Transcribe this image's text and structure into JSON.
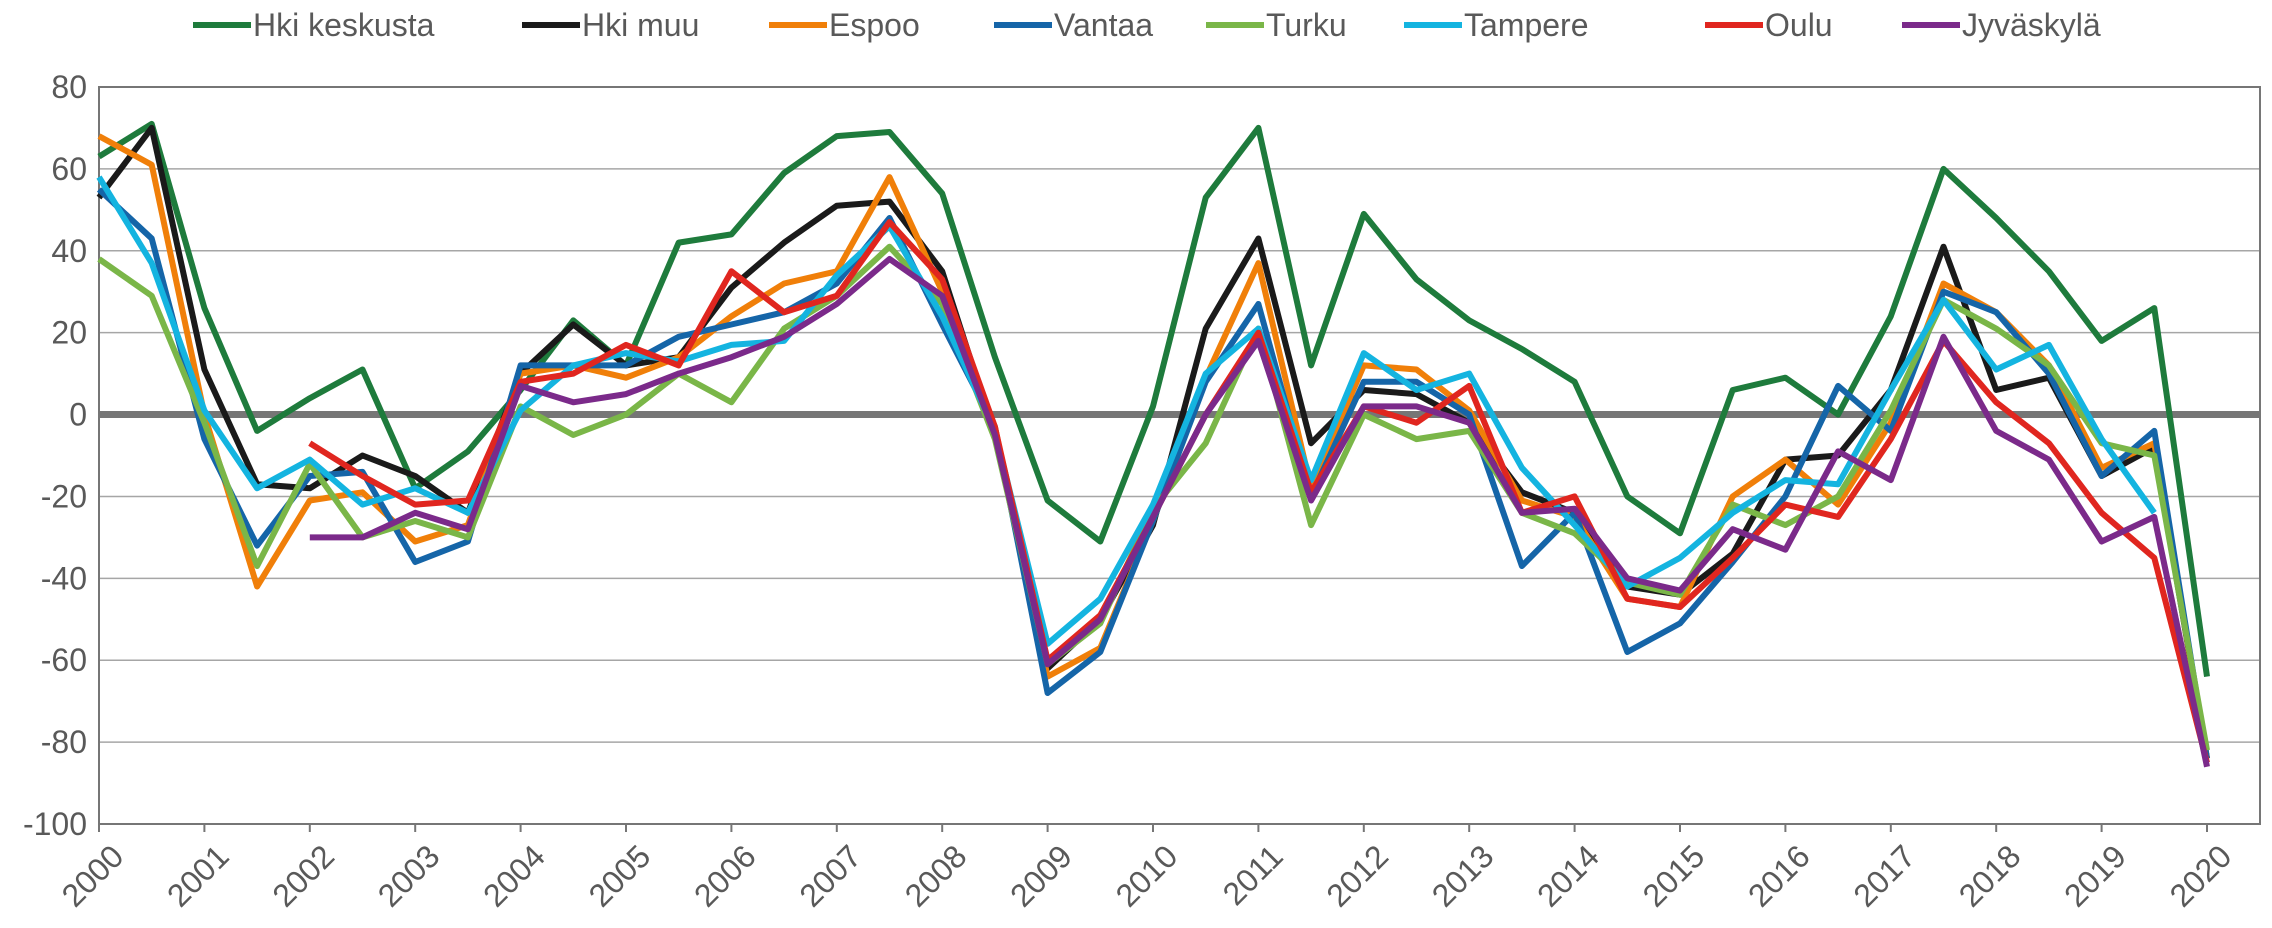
{
  "chart_data": {
    "type": "line",
    "x": [
      2000,
      2000.5,
      2001,
      2001.5,
      2002,
      2002.5,
      2003,
      2003.5,
      2004,
      2004.5,
      2005,
      2005.5,
      2006,
      2006.5,
      2007,
      2007.5,
      2008,
      2008.5,
      2009,
      2009.5,
      2010,
      2010.5,
      2011,
      2011.5,
      2012,
      2012.5,
      2013,
      2013.5,
      2014,
      2014.5,
      2015,
      2015.5,
      2016,
      2016.5,
      2017,
      2017.5,
      2018,
      2018.5,
      2019,
      2019.5,
      2020
    ],
    "xlim": [
      2000,
      2020
    ],
    "xticks": [
      2000,
      2001,
      2002,
      2003,
      2004,
      2005,
      2006,
      2007,
      2008,
      2009,
      2010,
      2011,
      2012,
      2013,
      2014,
      2015,
      2016,
      2017,
      2018,
      2019,
      2020
    ],
    "ylim": [
      -100,
      80
    ],
    "yticks": [
      -100,
      -80,
      -60,
      -40,
      -20,
      0,
      20,
      40,
      60,
      80
    ],
    "grid": true,
    "legend": "top",
    "series": [
      {
        "name": "Hki keskusta",
        "color": "#1e7b3c",
        "values": [
          63,
          71,
          26,
          -4,
          4,
          11,
          -18,
          -9,
          6,
          23,
          12,
          42,
          44,
          59,
          68,
          69,
          54,
          14,
          -21,
          -31,
          2,
          53,
          70,
          12,
          49,
          33,
          23,
          16,
          8,
          -20,
          -29,
          6,
          9,
          0,
          24,
          60,
          48,
          35,
          18,
          26,
          -64
        ]
      },
      {
        "name": "Hki muu",
        "color": "#1a1a1a",
        "values": [
          53,
          70,
          11,
          -17,
          -18,
          -10,
          -15,
          -24,
          10,
          22,
          12,
          14,
          31,
          42,
          51,
          52,
          35,
          -5,
          -62,
          -50,
          -27,
          21,
          43,
          -7,
          6,
          5,
          -2,
          -19,
          -24,
          -42,
          -44,
          -34,
          -11,
          -10,
          6,
          41,
          6,
          9,
          -15,
          -8,
          -84
        ]
      },
      {
        "name": "Espoo",
        "color": "#f07f09",
        "values": [
          68,
          61,
          0,
          -42,
          -21,
          -19,
          -31,
          -27,
          10,
          12,
          9,
          14,
          24,
          32,
          35,
          58,
          30,
          -3,
          -64,
          -57,
          -26,
          9,
          37,
          -18,
          12,
          11,
          1,
          -21,
          -25,
          -45,
          -47,
          -20,
          -11,
          -22,
          -2,
          32,
          25,
          12,
          -13,
          -7,
          -84
        ]
      },
      {
        "name": "Vantaa",
        "color": "#1565a8",
        "values": [
          55,
          43,
          -6,
          -32,
          -15,
          -14,
          -36,
          -31,
          12,
          12,
          12,
          19,
          22,
          25,
          32,
          48,
          22,
          -3,
          -68,
          -58,
          -26,
          8,
          27,
          -20,
          8,
          8,
          0,
          -37,
          -24,
          -58,
          -51,
          -36,
          -20,
          7,
          -4,
          30,
          25,
          10,
          -15,
          -4,
          -84
        ]
      },
      {
        "name": "Turku",
        "color": "#7ab648",
        "values": [
          38,
          29,
          -2,
          -37,
          -12,
          -30,
          -26,
          -30,
          2,
          -5,
          0,
          10,
          3,
          21,
          29,
          41,
          27,
          -6,
          -61,
          -51,
          -23,
          -7,
          21,
          -27,
          0,
          -6,
          -4,
          -24,
          -29,
          -41,
          -44,
          -22,
          -27,
          -20,
          1,
          28,
          21,
          12,
          -7,
          -10,
          -82
        ]
      },
      {
        "name": "Tampere",
        "color": "#14b4e0",
        "values": [
          58,
          37,
          1,
          -18,
          -11,
          -22,
          -18,
          -24,
          1,
          12,
          15,
          13,
          17,
          18,
          34,
          46,
          24,
          -4,
          -56,
          -45,
          -22,
          10,
          21,
          -16,
          15,
          6,
          10,
          -13,
          -27,
          -42,
          -35,
          -24,
          -16,
          -17,
          6,
          28,
          11,
          17,
          -6,
          -24,
          null
        ]
      },
      {
        "name": "Oulu",
        "color": "#e0261f",
        "values": [
          null,
          null,
          null,
          null,
          -7,
          -15,
          -22,
          -21,
          8,
          10,
          17,
          12,
          35,
          25,
          29,
          47,
          33,
          -3,
          -60,
          -49,
          -25,
          0,
          20,
          -19,
          2,
          -2,
          7,
          -24,
          -20,
          -45,
          -47,
          -35,
          -22,
          -25,
          -6,
          18,
          3,
          -7,
          -24,
          -35,
          -85
        ]
      },
      {
        "name": "Jyväskylä",
        "color": "#7b2a8a",
        "values": [
          null,
          null,
          null,
          null,
          -30,
          -30,
          -24,
          -28,
          7,
          3,
          5,
          10,
          14,
          19,
          27,
          38,
          29,
          -5,
          -61,
          -50,
          -25,
          0,
          18,
          -21,
          2,
          2,
          -2,
          -24,
          -23,
          -40,
          -43,
          -28,
          -33,
          -9,
          -16,
          19,
          -4,
          -11,
          -31,
          -25,
          -86
        ]
      }
    ]
  }
}
